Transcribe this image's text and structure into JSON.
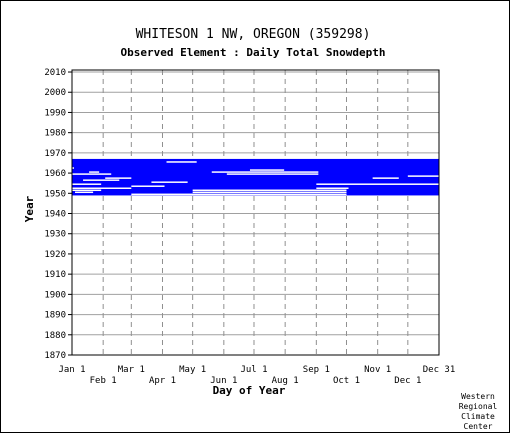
{
  "chart_data": {
    "type": "heatmap",
    "title": "WHITESON 1 NW, OREGON   (359298)",
    "subtitle": "Observed Element : Daily Total Snowdepth",
    "xlabel": "Day of Year",
    "ylabel": "Year",
    "ylim": [
      1870,
      2011
    ],
    "yticks": [
      1870,
      1880,
      1890,
      1900,
      1910,
      1920,
      1930,
      1940,
      1950,
      1960,
      1970,
      1980,
      1990,
      2000,
      2010
    ],
    "xlim": [
      1,
      366
    ],
    "xticks_top": [
      {
        "label": "Jan 1",
        "day": 1
      },
      {
        "label": "Mar 1",
        "day": 60
      },
      {
        "label": "May 1",
        "day": 121
      },
      {
        "label": "Jul 1",
        "day": 182
      },
      {
        "label": "Sep 1",
        "day": 244
      },
      {
        "label": "Nov 1",
        "day": 305
      },
      {
        "label": "Dec 31",
        "day": 366
      }
    ],
    "xticks_bottom": [
      {
        "label": "Feb 1",
        "day": 32
      },
      {
        "label": "Apr 1",
        "day": 91
      },
      {
        "label": "Jun 1",
        "day": 152
      },
      {
        "label": "Aug 1",
        "day": 213
      },
      {
        "label": "Oct 1",
        "day": 274
      },
      {
        "label": "Dec 1",
        "day": 335
      }
    ],
    "grid": true,
    "color_observed": "#0000ff",
    "observed_periods": [
      {
        "year_start": 1949,
        "year_end": 1966,
        "day_start": 1,
        "day_end": 366
      },
      {
        "year_start": 1949,
        "year_end": 1949,
        "day_start": 1,
        "day_end": 60
      },
      {
        "year_start": 1949,
        "year_end": 1949,
        "day_start": 274,
        "day_end": 366
      }
    ],
    "missing_periods": [
      {
        "year": 1965,
        "day_start": 95,
        "day_end": 125
      },
      {
        "year": 1962,
        "day_start": 1,
        "day_end": 3
      },
      {
        "year": 1961,
        "day_start": 178,
        "day_end": 212
      },
      {
        "year": 1960,
        "day_start": 18,
        "day_end": 28
      },
      {
        "year": 1960,
        "day_start": 140,
        "day_end": 246
      },
      {
        "year": 1959,
        "day_start": 1,
        "day_end": 40
      },
      {
        "year": 1959,
        "day_start": 155,
        "day_end": 246
      },
      {
        "year": 1958,
        "day_start": 335,
        "day_end": 366
      },
      {
        "year": 1957,
        "day_start": 34,
        "day_end": 60
      },
      {
        "year": 1957,
        "day_start": 300,
        "day_end": 326
      },
      {
        "year": 1956,
        "day_start": 12,
        "day_end": 48
      },
      {
        "year": 1955,
        "day_start": 80,
        "day_end": 116
      },
      {
        "year": 1954,
        "day_start": 1,
        "day_end": 30
      },
      {
        "year": 1954,
        "day_start": 244,
        "day_end": 366
      },
      {
        "year": 1953,
        "day_start": 60,
        "day_end": 93
      },
      {
        "year": 1952,
        "day_start": 1,
        "day_end": 60
      },
      {
        "year": 1952,
        "day_start": 244,
        "day_end": 276
      },
      {
        "year": 1951,
        "day_start": 1,
        "day_end": 30
      },
      {
        "year": 1951,
        "day_start": 121,
        "day_end": 274
      },
      {
        "year": 1950,
        "day_start": 4,
        "day_end": 22
      },
      {
        "year": 1950,
        "day_start": 121,
        "day_end": 274
      },
      {
        "year": 1949,
        "day_start": 60,
        "day_end": 274
      }
    ]
  },
  "credit": [
    "Western",
    "Regional",
    "Climate",
    "Center"
  ]
}
